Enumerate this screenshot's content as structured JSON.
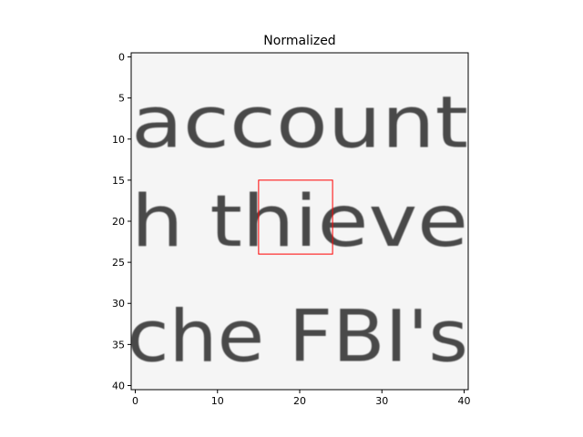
{
  "chart_data": {
    "type": "heatmap",
    "title": "Normalized",
    "colormap": "gray_r",
    "x_ticks": [
      0,
      10,
      20,
      30,
      40
    ],
    "y_ticks": [
      0,
      5,
      10,
      15,
      20,
      25,
      30,
      35,
      40
    ],
    "xlim": [
      -0.5,
      40.5
    ],
    "ylim": [
      40.5,
      -0.5
    ],
    "grid_size": [
      41,
      41
    ],
    "text_rows": [
      {
        "text": "account",
        "y_center": 8,
        "x_start": -0.5,
        "x_end": 40.5
      },
      {
        "text": "h thieve",
        "y_center": 20,
        "x_start": -0.5,
        "x_end": 40.5
      },
      {
        "text": "che FBI's",
        "y_center": 34,
        "x_start": -1,
        "x_end": 40.5
      }
    ],
    "highlight_box": {
      "x": 15,
      "y": 15,
      "width": 9,
      "height": 9,
      "color": "#ff0000"
    }
  }
}
